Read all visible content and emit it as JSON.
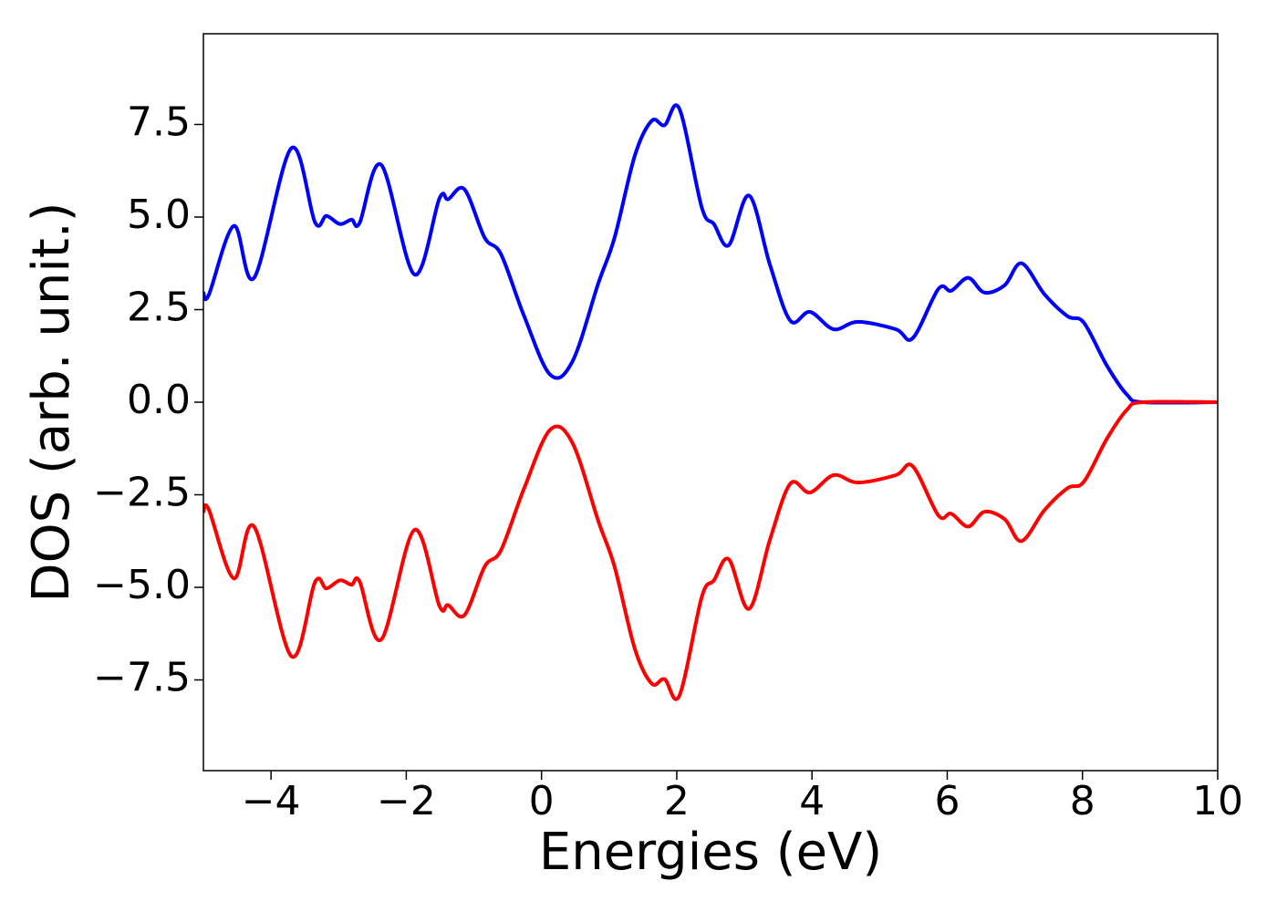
{
  "chart_data": {
    "type": "line",
    "xlabel": "Energies (eV)",
    "ylabel": "DOS (arb. unit.)",
    "x": [
      -5,
      -4.92,
      -4.55,
      -4.25,
      -3.7,
      -3.35,
      -3.18,
      -2.98,
      -2.81,
      -2.69,
      -2.37,
      -1.88,
      -1.51,
      -1.38,
      -1.14,
      -0.84,
      -0.6,
      -0.26,
      0.13,
      0.46,
      0.84,
      1.08,
      1.38,
      1.63,
      1.82,
      2.04,
      2.37,
      2.55,
      2.77,
      3.07,
      3.38,
      3.68,
      3.97,
      4.32,
      4.68,
      5.24,
      5.49,
      5.87,
      6.06,
      6.31,
      6.55,
      6.85,
      7.1,
      7.44,
      7.78,
      8.02,
      8.36,
      8.66,
      8.9,
      10
    ],
    "series": [
      {
        "color": "#0000ff",
        "values": [
          2.96,
          2.9,
          4.76,
          3.36,
          6.86,
          4.86,
          5.03,
          4.81,
          4.93,
          4.84,
          6.41,
          3.45,
          5.5,
          5.48,
          5.75,
          4.44,
          4.0,
          2.34,
          0.74,
          1.11,
          3.21,
          4.44,
          6.66,
          7.6,
          7.48,
          7.92,
          5.26,
          4.81,
          4.24,
          5.58,
          3.7,
          2.2,
          2.44,
          1.97,
          2.17,
          1.97,
          1.73,
          3.06,
          3.01,
          3.36,
          2.96,
          3.16,
          3.75,
          2.91,
          2.32,
          2.15,
          0.99,
          0.2,
          0,
          0
        ]
      },
      {
        "color": "#ff0000",
        "values": [
          -2.96,
          -2.9,
          -4.76,
          -3.36,
          -6.86,
          -4.86,
          -5.03,
          -4.81,
          -4.93,
          -4.84,
          -6.41,
          -3.45,
          -5.5,
          -5.48,
          -5.75,
          -4.44,
          -4.0,
          -2.34,
          -0.74,
          -1.11,
          -3.21,
          -4.44,
          -6.66,
          -7.6,
          -7.48,
          -7.92,
          -5.26,
          -4.81,
          -4.24,
          -5.58,
          -3.7,
          -2.2,
          -2.44,
          -1.97,
          -2.17,
          -1.97,
          -1.73,
          -3.06,
          -3.01,
          -3.36,
          -2.96,
          -3.16,
          -3.75,
          -2.91,
          -2.32,
          -2.15,
          -0.99,
          -0.2,
          0,
          0
        ]
      }
    ],
    "xlim": [
      -5,
      10
    ],
    "xticks": [
      {
        "value": -4,
        "label": "−4"
      },
      {
        "value": -2,
        "label": "−2"
      },
      0,
      2,
      4,
      6,
      8,
      10
    ],
    "ylim": [
      -9.95,
      9.95
    ],
    "yticks": [
      {
        "value": -7.5,
        "label": "−7.5"
      },
      {
        "value": -5,
        "label": "−5.0"
      },
      {
        "value": -2.5,
        "label": "−2.5"
      },
      {
        "value": 0,
        "label": "0.0"
      },
      {
        "value": 2.5,
        "label": "2.5"
      },
      {
        "value": 5,
        "label": "5.0"
      },
      7.5
    ]
  }
}
